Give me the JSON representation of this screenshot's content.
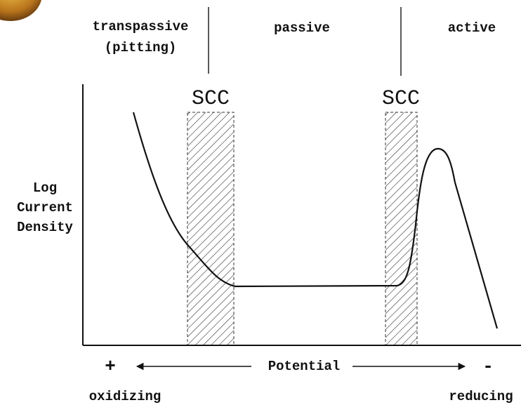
{
  "regions": [
    {
      "label": "transpassive",
      "sublabel": "(pitting)"
    },
    {
      "label": "passive"
    },
    {
      "label": "active"
    }
  ],
  "scc_zones": [
    {
      "label": "SCC"
    },
    {
      "label": "SCC"
    }
  ],
  "y_axis": {
    "label_lines": [
      "Log",
      "Current",
      "Density"
    ]
  },
  "x_axis": {
    "positive": "+",
    "label": "Potential",
    "negative": "-",
    "left": "oxidizing",
    "right": "reducing"
  }
}
